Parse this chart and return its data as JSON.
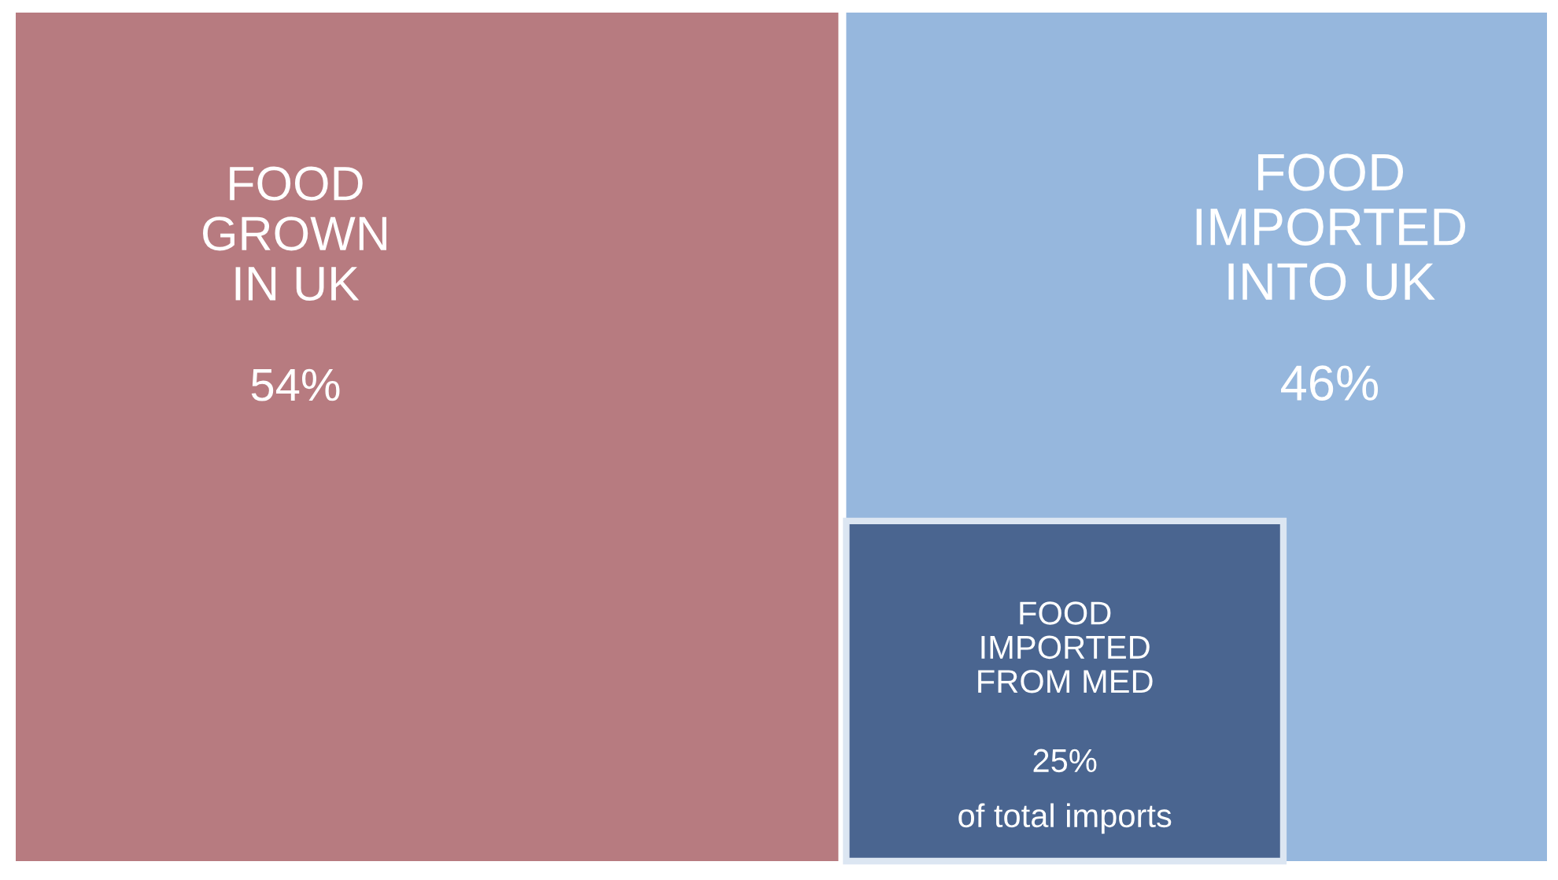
{
  "chart_data": {
    "type": "other",
    "categories": [
      "FOOD\nGROWN\nIN UK",
      "FOOD\nIMPORTED\nINTO UK",
      "FOOD\nIMPORTED\nFROM MED"
    ],
    "values": [
      54,
      46,
      25
    ],
    "value_labels": [
      "54%",
      "46%",
      "25%"
    ],
    "annotations": [
      "of total imports"
    ],
    "colors": [
      "#b77b80",
      "#96b7dd",
      "#4a6590"
    ]
  }
}
